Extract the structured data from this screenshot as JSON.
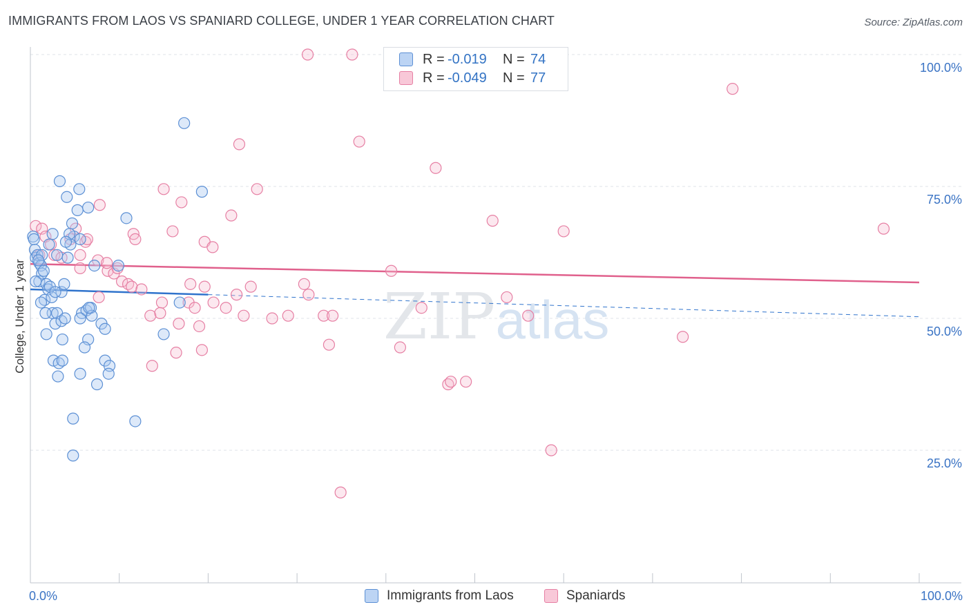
{
  "header": {
    "title": "IMMIGRANTS FROM LAOS VS SPANIARD COLLEGE, UNDER 1 YEAR CORRELATION CHART",
    "source": "Source: ZipAtlas.com"
  },
  "watermark": {
    "zip": "ZIP",
    "atlas": "atlas"
  },
  "colors": {
    "blue_fill": "#aac8f0",
    "blue_stroke": "#5b8fd4",
    "blue_line": "#2f73cc",
    "pink_fill": "#f6bcd0",
    "pink_stroke": "#e67fa3",
    "pink_line": "#e0608c",
    "axis_text": "#3a73c4",
    "grid": "#dfe3ea"
  },
  "legend": {
    "blue": {
      "r_label": "R =",
      "r_value": "-0.019",
      "n_label": "N =",
      "n_value": "74"
    },
    "pink": {
      "r_label": "R =",
      "r_value": "-0.049",
      "n_label": "N =",
      "n_value": "77"
    }
  },
  "chart_data": {
    "type": "scatter",
    "title": "IMMIGRANTS FROM LAOS VS SPANIARD COLLEGE, UNDER 1 YEAR CORRELATION CHART",
    "xlabel": "",
    "ylabel": "College, Under 1 year",
    "xlim": [
      0,
      100
    ],
    "ylim": [
      0,
      102
    ],
    "x_ticks": [
      "0.0%",
      "100.0%"
    ],
    "y_ticks": [
      {
        "value": 25,
        "label": "25.0%"
      },
      {
        "value": 50,
        "label": "50.0%"
      },
      {
        "value": 75,
        "label": "75.0%"
      },
      {
        "value": 100,
        "label": "100.0%"
      }
    ],
    "legend_position": "bottom-center",
    "series": [
      {
        "name": "Immigrants from Laos",
        "color": "blue",
        "R": -0.019,
        "N": 74,
        "trend": {
          "solid": [
            [
              0,
              55.5
            ],
            [
              20,
              54.5
            ]
          ],
          "dashed": [
            [
              20,
              54.5
            ],
            [
              100,
              50.3
            ]
          ]
        },
        "points": [
          [
            0.3,
            65.5
          ],
          [
            0.4,
            65
          ],
          [
            0.5,
            63
          ],
          [
            0.6,
            61.5
          ],
          [
            0.8,
            62
          ],
          [
            1.0,
            60.5
          ],
          [
            1.2,
            60
          ],
          [
            1.0,
            57
          ],
          [
            1.3,
            58.5
          ],
          [
            1.5,
            59
          ],
          [
            1.8,
            56.5
          ],
          [
            2.0,
            55.5
          ],
          [
            2.2,
            56
          ],
          [
            1.6,
            53.5
          ],
          [
            2.4,
            54
          ],
          [
            1.2,
            53
          ],
          [
            2.5,
            51
          ],
          [
            3.0,
            51
          ],
          [
            2.8,
            49
          ],
          [
            3.5,
            49.5
          ],
          [
            1.8,
            47
          ],
          [
            3.6,
            46
          ],
          [
            2.6,
            42
          ],
          [
            3.2,
            41.5
          ],
          [
            3.6,
            42
          ],
          [
            3.1,
            39
          ],
          [
            3.5,
            55
          ],
          [
            3.8,
            56.5
          ],
          [
            2.5,
            66
          ],
          [
            3.3,
            76
          ],
          [
            4.1,
            73
          ],
          [
            4.9,
            65.5
          ],
          [
            4.5,
            64
          ],
          [
            4.7,
            68
          ],
          [
            5.3,
            70.5
          ],
          [
            5.5,
            74.5
          ],
          [
            6.5,
            71
          ],
          [
            5.6,
            65
          ],
          [
            4.2,
            61.5
          ],
          [
            4.4,
            66
          ],
          [
            5.8,
            51
          ],
          [
            6.3,
            51.5
          ],
          [
            6.8,
            52
          ],
          [
            5.6,
            50
          ],
          [
            6.9,
            50.5
          ],
          [
            8.0,
            49
          ],
          [
            8.4,
            48
          ],
          [
            6.5,
            46
          ],
          [
            6.1,
            44.5
          ],
          [
            8.4,
            42
          ],
          [
            8.9,
            41
          ],
          [
            8.8,
            39.5
          ],
          [
            7.5,
            37.5
          ],
          [
            5.6,
            39.5
          ],
          [
            4.8,
            31
          ],
          [
            11.8,
            30.5
          ],
          [
            4.8,
            24
          ],
          [
            9.9,
            60
          ],
          [
            10.8,
            69
          ],
          [
            17.3,
            87
          ],
          [
            19.3,
            74
          ],
          [
            15.0,
            47
          ],
          [
            16.8,
            53
          ],
          [
            2.1,
            64
          ],
          [
            4.0,
            64.5
          ],
          [
            1.3,
            62
          ],
          [
            0.6,
            57
          ],
          [
            2.8,
            55
          ],
          [
            1.7,
            51
          ],
          [
            3.9,
            50
          ],
          [
            0.9,
            61
          ],
          [
            6.6,
            52
          ],
          [
            7.2,
            60
          ],
          [
            3.0,
            62
          ]
        ]
      },
      {
        "name": "Spaniards",
        "color": "pink",
        "R": -0.049,
        "N": 77,
        "trend": {
          "solid": [
            [
              0,
              60.3
            ],
            [
              100,
              56.8
            ]
          ]
        },
        "points": [
          [
            0.6,
            67.5
          ],
          [
            1.3,
            67
          ],
          [
            1.7,
            65.5
          ],
          [
            2.3,
            64
          ],
          [
            1.0,
            62
          ],
          [
            2.7,
            62
          ],
          [
            3.5,
            61.5
          ],
          [
            4.5,
            65
          ],
          [
            5.1,
            67
          ],
          [
            6.2,
            64.5
          ],
          [
            6.4,
            65
          ],
          [
            5.6,
            62
          ],
          [
            5.6,
            59.5
          ],
          [
            7.6,
            61
          ],
          [
            8.7,
            59
          ],
          [
            8.6,
            60.5
          ],
          [
            9.4,
            58.5
          ],
          [
            9.8,
            59.5
          ],
          [
            10.3,
            57
          ],
          [
            11.0,
            56.5
          ],
          [
            11.4,
            56
          ],
          [
            12.5,
            55.5
          ],
          [
            11.6,
            66
          ],
          [
            11.8,
            65
          ],
          [
            7.8,
            71.5
          ],
          [
            15.0,
            74.5
          ],
          [
            16.0,
            66.5
          ],
          [
            17.0,
            72
          ],
          [
            19.6,
            64.5
          ],
          [
            20.5,
            63.5
          ],
          [
            22.6,
            69.5
          ],
          [
            23.5,
            83
          ],
          [
            25.5,
            74.5
          ],
          [
            24.8,
            56
          ],
          [
            19.6,
            56
          ],
          [
            18.0,
            56.5
          ],
          [
            14.8,
            53
          ],
          [
            17.8,
            53
          ],
          [
            18.5,
            52
          ],
          [
            20.6,
            53
          ],
          [
            22.0,
            52
          ],
          [
            24.0,
            50.5
          ],
          [
            23.2,
            54.5
          ],
          [
            27.2,
            50
          ],
          [
            29.0,
            50.5
          ],
          [
            30.8,
            56.5
          ],
          [
            31.3,
            54.5
          ],
          [
            33.0,
            50.5
          ],
          [
            33.6,
            45
          ],
          [
            34.0,
            50.5
          ],
          [
            37.0,
            83.5
          ],
          [
            40.6,
            59
          ],
          [
            41.6,
            44.5
          ],
          [
            44.0,
            52
          ],
          [
            45.6,
            78.5
          ],
          [
            47.0,
            37.5
          ],
          [
            47.3,
            38
          ],
          [
            49.0,
            38
          ],
          [
            52.0,
            68.5
          ],
          [
            53.6,
            54
          ],
          [
            56.0,
            50.5
          ],
          [
            58.6,
            25
          ],
          [
            60.0,
            66.5
          ],
          [
            73.4,
            46.5
          ],
          [
            79.0,
            93.5
          ],
          [
            96.0,
            67
          ],
          [
            31.2,
            100
          ],
          [
            36.2,
            100
          ],
          [
            34.9,
            17
          ],
          [
            13.5,
            50.5
          ],
          [
            14.6,
            51
          ],
          [
            16.4,
            43.5
          ],
          [
            13.7,
            41
          ],
          [
            19.3,
            44
          ],
          [
            19.0,
            48.5
          ],
          [
            16.7,
            49
          ],
          [
            7.7,
            54
          ]
        ]
      }
    ]
  }
}
